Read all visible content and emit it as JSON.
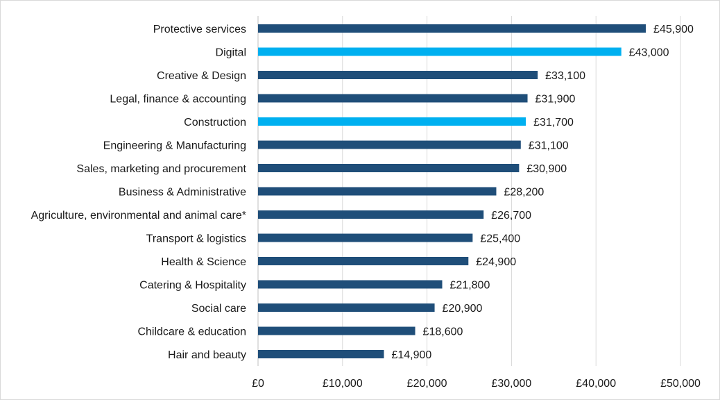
{
  "chart_data": {
    "type": "bar",
    "orientation": "horizontal",
    "title": "",
    "xlabel": "",
    "ylabel": "",
    "xlim": [
      0,
      50000
    ],
    "x_ticks": [
      0,
      10000,
      20000,
      30000,
      40000,
      50000
    ],
    "x_tick_labels": [
      "£0",
      "£10,000",
      "£20,000",
      "£30,000",
      "£40,000",
      "£50,000"
    ],
    "grid": "vertical",
    "legend": "none",
    "colors": {
      "default": "#1f4e79",
      "highlight": "#00b0f0",
      "grid": "#d9d9d9",
      "axis": "#bfbfbf"
    },
    "bars": [
      {
        "category": "Protective services",
        "value": 45900,
        "label": "£45,900",
        "highlight": false
      },
      {
        "category": "Digital",
        "value": 43000,
        "label": "£43,000",
        "highlight": true
      },
      {
        "category": "Creative & Design",
        "value": 33100,
        "label": "£33,100",
        "highlight": false
      },
      {
        "category": "Legal, finance & accounting",
        "value": 31900,
        "label": "£31,900",
        "highlight": false
      },
      {
        "category": "Construction",
        "value": 31700,
        "label": "£31,700",
        "highlight": true
      },
      {
        "category": "Engineering & Manufacturing",
        "value": 31100,
        "label": "£31,100",
        "highlight": false
      },
      {
        "category": "Sales, marketing and procurement",
        "value": 30900,
        "label": "£30,900",
        "highlight": false
      },
      {
        "category": "Business & Administrative",
        "value": 28200,
        "label": "£28,200",
        "highlight": false
      },
      {
        "category": "Agriculture, environmental and animal care*",
        "value": 26700,
        "label": "£26,700",
        "highlight": false
      },
      {
        "category": "Transport & logistics",
        "value": 25400,
        "label": "£25,400",
        "highlight": false
      },
      {
        "category": "Health & Science",
        "value": 24900,
        "label": "£24,900",
        "highlight": false
      },
      {
        "category": "Catering & Hospitality",
        "value": 21800,
        "label": "£21,800",
        "highlight": false
      },
      {
        "category": "Social care",
        "value": 20900,
        "label": "£20,900",
        "highlight": false
      },
      {
        "category": "Childcare & education",
        "value": 18600,
        "label": "£18,600",
        "highlight": false
      },
      {
        "category": "Hair and beauty",
        "value": 14900,
        "label": "£14,900",
        "highlight": false
      }
    ]
  }
}
